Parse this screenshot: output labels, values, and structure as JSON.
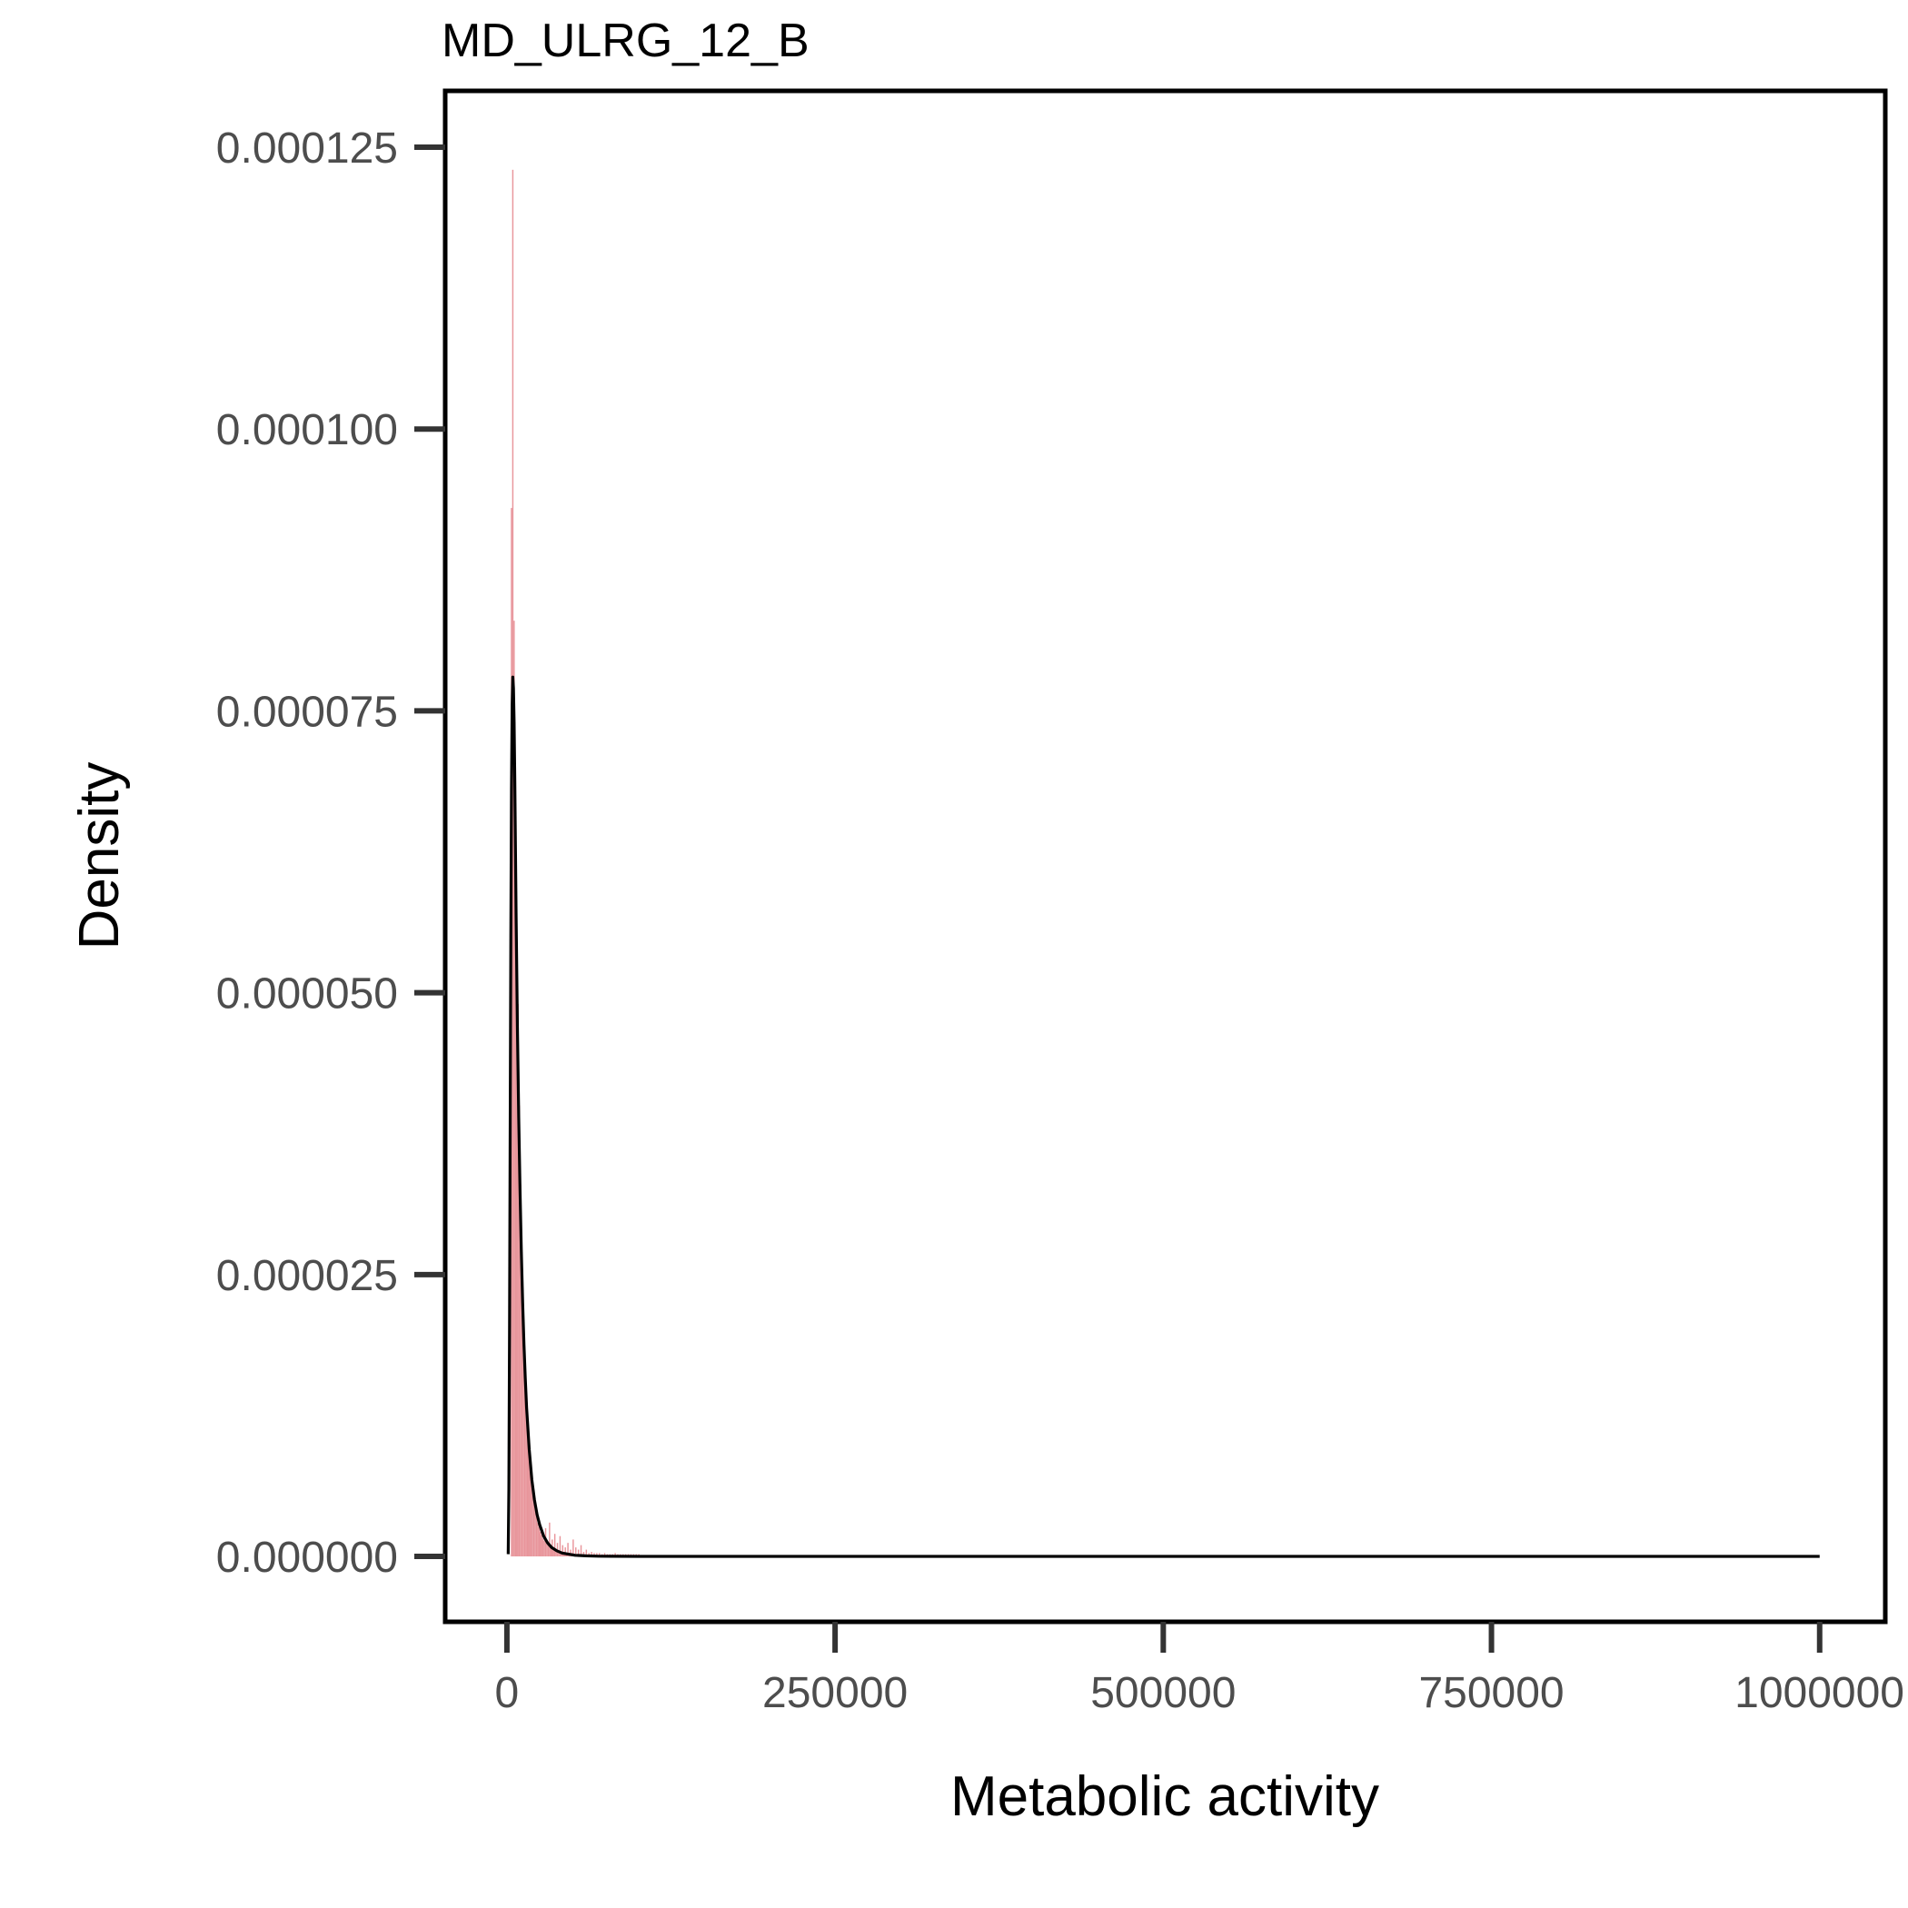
{
  "chart_data": {
    "type": "histogram",
    "title": "MD_ULRG_12_B",
    "xlabel": "Metabolic activity",
    "ylabel": "Density",
    "xlim": [
      -47000,
      1050000
    ],
    "ylim": [
      -5.8e-06,
      0.00013
    ],
    "x_ticks": [
      0,
      250000,
      500000,
      750000,
      1000000
    ],
    "x_tick_labels": [
      "0",
      "250000",
      "500000",
      "750000",
      "1000000"
    ],
    "y_ticks": [
      0,
      2.5e-05,
      5e-05,
      7.5e-05,
      0.0001,
      0.000125
    ],
    "y_tick_labels": [
      "0.000000",
      "0.000025",
      "0.000050",
      "0.000075",
      "0.000100",
      "0.000125"
    ],
    "grid": false,
    "legend": "none",
    "colors": {
      "histogram_fill": "#e8959b",
      "density_line": "#000000",
      "panel_border": "#000000",
      "tick_mark": "#333333",
      "tick_label": "#4d4d4d"
    },
    "histogram": {
      "bin_width": 1000,
      "x_start": 3000,
      "density": [
        9.3e-05,
        0.000123,
        8.3e-05,
        7e-05,
        5.8e-05,
        4.9e-05,
        4e-05,
        3.3e-05,
        2.7e-05,
        2.2e-05,
        1.8e-05,
        1.5e-05,
        1.2e-05,
        1e-05,
        8.5e-06,
        7e-06,
        6e-06,
        5e-06,
        4.2e-06,
        3.6e-06,
        3e-06,
        2.6e-06,
        2.2e-06,
        1.9e-06,
        1.6e-06,
        1.4e-06,
        2.5e-06,
        1.2e-06,
        1e-06,
        3e-06,
        8e-07,
        1.5e-06,
        7e-07,
        2e-06,
        6e-07,
        1.2e-06,
        5e-07,
        1.8e-06,
        4e-07,
        1e-06,
        4e-07,
        8e-07,
        3e-07,
        1.2e-06,
        3e-07,
        6e-07,
        3e-07,
        1.5e-06,
        2e-07,
        8e-07,
        2e-07,
        6e-07,
        2e-07,
        1e-06,
        2e-07,
        4e-07,
        1e-07,
        6e-07,
        1e-07,
        3e-07,
        1e-07,
        4e-07,
        1e-07,
        3e-07,
        1e-07,
        3e-07,
        1e-07,
        3e-07,
        1e-07,
        2e-07,
        1e-07,
        3e-07,
        1e-07,
        2e-07,
        1e-07,
        2e-07,
        1e-07,
        2e-07,
        1e-07,
        3e-07,
        1e-07,
        2e-07,
        1e-07,
        2e-07,
        1e-07,
        2e-07,
        1e-07,
        2e-07,
        1e-07,
        2e-07,
        1e-07,
        2e-07,
        1e-07,
        2e-07,
        1e-07,
        2e-07,
        1e-07,
        2e-07
      ]
    },
    "density_curve": {
      "x": [
        1000,
        1500,
        2000,
        2500,
        3000,
        3500,
        4000,
        4500,
        5000,
        5500,
        6000,
        6500,
        7000,
        8000,
        9000,
        10000,
        11000,
        12000,
        13000,
        14000,
        15000,
        17000,
        19000,
        21000,
        23000,
        25000,
        28000,
        31000,
        34000,
        38000,
        42000,
        47000,
        52000,
        60000,
        70000,
        80000,
        100000,
        130000,
        200000,
        300000,
        500000,
        750000,
        1000000
      ],
      "y": [
        2e-07,
        6e-06,
        2e-05,
        3.8e-05,
        5.5e-05,
        6.8e-05,
        7.55e-05,
        7.8e-05,
        7.7e-05,
        7.4e-05,
        6.9e-05,
        6.3e-05,
        5.7e-05,
        4.7e-05,
        3.9e-05,
        3.25e-05,
        2.7e-05,
        2.25e-05,
        1.88e-05,
        1.58e-05,
        1.32e-05,
        9.5e-06,
        6.8e-06,
        5e-06,
        3.7e-06,
        2.8e-06,
        1.8e-06,
        1.2e-06,
        8e-07,
        5e-07,
        3e-07,
        2e-07,
        1e-07,
        5e-08,
        2e-08,
        1e-08,
        4e-09,
        1e-09,
        0,
        0,
        0,
        0,
        0
      ]
    }
  }
}
